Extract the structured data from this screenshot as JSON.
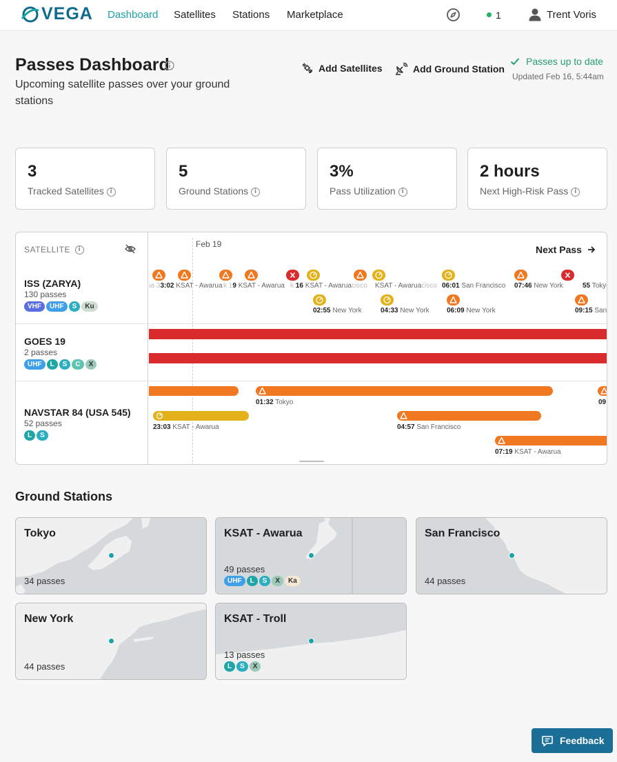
{
  "nav": {
    "logo": "VEGA",
    "links": [
      "Dashboard",
      "Satellites",
      "Stations",
      "Marketplace"
    ],
    "status_count": "1",
    "user": "Trent Voris"
  },
  "header": {
    "title": "Passes Dashboard",
    "subtitle": "Upcoming satellite passes over your ground stations",
    "add_satellites": "Add Satellites",
    "add_ground_station": "Add Ground Station",
    "status": "Passes up to date",
    "updated": "Updated Feb 16, 5:44am"
  },
  "stats": [
    {
      "value": "3",
      "label": "Tracked Satellites"
    },
    {
      "value": "5",
      "label": "Ground Stations"
    },
    {
      "value": "3%",
      "label": "Pass Utilization"
    },
    {
      "value": "2 hours",
      "label": "Next High-Risk Pass"
    }
  ],
  "timeline": {
    "column_header": "SATELLITE",
    "date_label": "Feb 19",
    "next_pass": "Next Pass",
    "satellites": [
      {
        "name": "ISS (ZARYA)",
        "passes": "130 passes",
        "bands": [
          "VHF",
          "UHF",
          "S",
          "Ku"
        ]
      },
      {
        "name": "GOES 19",
        "passes": "2 passes",
        "bands": [
          "UHF",
          "L",
          "S",
          "C",
          "X"
        ]
      },
      {
        "name": "NAVSTAR 84 (USA 545)",
        "passes": "52 passes",
        "bands": [
          "L",
          "S"
        ]
      }
    ],
    "iss_top_labels": [
      {
        "time": "3:02",
        "station": "KSAT - Awarua"
      },
      {
        "time": "9",
        "station": "KSAT - Awarua"
      },
      {
        "time": "16",
        "station": "KSAT - Awarua"
      },
      {
        "time": "",
        "station": "KSAT - Awarua"
      },
      {
        "time": "06:01",
        "station": "San Francisco"
      },
      {
        "time": "07:46",
        "station": "New York"
      },
      {
        "time": "55",
        "station": "Tokyo"
      }
    ],
    "iss_bottom_labels": [
      {
        "time": "02:55",
        "station": "New York"
      },
      {
        "time": "04:33",
        "station": "New York"
      },
      {
        "time": "06:09",
        "station": "New York"
      },
      {
        "time": "09:15",
        "station": "San"
      }
    ],
    "navstar_labels": [
      {
        "time": "01:32",
        "station": "Tokyo"
      },
      {
        "time": "09",
        "station": ""
      },
      {
        "time": "23:03",
        "station": "KSAT - Awarua"
      },
      {
        "time": "04:57",
        "station": "San Francisco"
      },
      {
        "time": "07:19",
        "station": "KSAT - Awarua"
      }
    ]
  },
  "ground_stations": {
    "title": "Ground Stations",
    "items": [
      {
        "name": "Tokyo",
        "passes": "34 passes",
        "bands": []
      },
      {
        "name": "KSAT - Awarua",
        "passes": "49 passes",
        "bands": [
          "UHF",
          "L",
          "S",
          "X",
          "Ka"
        ]
      },
      {
        "name": "San Francisco",
        "passes": "44 passes",
        "bands": []
      },
      {
        "name": "New York",
        "passes": "44 passes",
        "bands": []
      },
      {
        "name": "KSAT - Troll",
        "passes": "13 passes",
        "bands": [
          "L",
          "S",
          "X"
        ]
      }
    ]
  },
  "colors": {
    "accent": "#1aa3a8",
    "risk_high": "#f07820",
    "risk_critical": "#d92b2b",
    "risk_medium": "#e3b21a",
    "success": "#22a06b",
    "feedback": "#1b6f96"
  },
  "feedback": "Feedback"
}
